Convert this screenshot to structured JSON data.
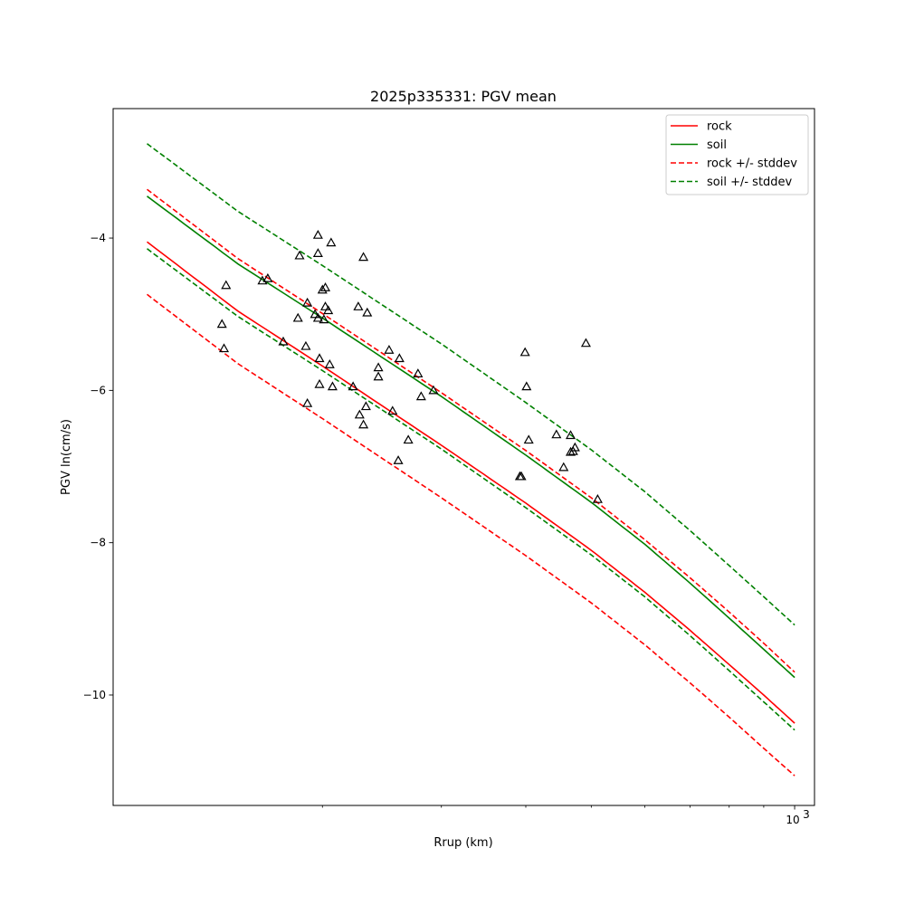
{
  "chart_data": {
    "type": "line",
    "title": "2025p335331: PGV mean",
    "xlabel": "Rrup (km)",
    "ylabel": "PGV ln(cm/s)",
    "xscale": "log",
    "xlim": [
      98,
      1070
    ],
    "ylim": [
      -11.45,
      -2.3
    ],
    "x_ticks": [
      {
        "value": 1000,
        "label": "10",
        "exponent": "3"
      }
    ],
    "x_minor_ticks": [
      200,
      300,
      400,
      500,
      600,
      700,
      800,
      900
    ],
    "y_ticks": [
      {
        "value": -4,
        "label": "−4"
      },
      {
        "value": -6,
        "label": "−6"
      },
      {
        "value": -8,
        "label": "−8"
      },
      {
        "value": -10,
        "label": "−10"
      }
    ],
    "grid": false,
    "legend_position": "top-right",
    "series": [
      {
        "name": "rock",
        "color": "#ff0000",
        "style": "solid",
        "x": [
          110,
          150,
          200,
          300,
          400,
          500,
          600,
          700,
          800,
          900,
          1000
        ],
        "y": [
          -4.05,
          -4.96,
          -5.68,
          -6.72,
          -7.48,
          -8.1,
          -8.65,
          -9.15,
          -9.6,
          -10.0,
          -10.37
        ]
      },
      {
        "name": "soil",
        "color": "#008000",
        "style": "solid",
        "x": [
          110,
          150,
          200,
          300,
          400,
          500,
          600,
          700,
          800,
          900,
          1000
        ],
        "y": [
          -3.45,
          -4.34,
          -5.05,
          -6.08,
          -6.85,
          -7.47,
          -8.02,
          -8.53,
          -8.99,
          -9.4,
          -9.77
        ]
      },
      {
        "name": "rock +/- stddev",
        "color": "#ff0000",
        "style": "dashed",
        "x": [
          110,
          150,
          200,
          300,
          400,
          500,
          600,
          700,
          800,
          900,
          1000
        ],
        "y": [
          -3.36,
          -4.27,
          -4.99,
          -6.03,
          -6.79,
          -7.41,
          -7.96,
          -8.46,
          -8.91,
          -9.32,
          -9.7
        ]
      },
      {
        "name": "",
        "color": "#ff0000",
        "style": "dashed",
        "x": [
          110,
          150,
          200,
          300,
          400,
          500,
          600,
          700,
          800,
          900,
          1000
        ],
        "y": [
          -4.74,
          -5.65,
          -6.37,
          -7.41,
          -8.17,
          -8.79,
          -9.34,
          -9.84,
          -10.29,
          -10.7,
          -11.06
        ]
      },
      {
        "name": "soil +/- stddev",
        "color": "#008000",
        "style": "dashed",
        "x": [
          110,
          150,
          200,
          300,
          400,
          500,
          600,
          700,
          800,
          900,
          1000
        ],
        "y": [
          -2.76,
          -3.65,
          -4.36,
          -5.39,
          -6.16,
          -6.78,
          -7.33,
          -7.84,
          -8.3,
          -8.71,
          -9.08
        ]
      },
      {
        "name": "",
        "color": "#008000",
        "style": "dashed",
        "x": [
          110,
          150,
          200,
          300,
          400,
          500,
          600,
          700,
          800,
          900,
          1000
        ],
        "y": [
          -4.14,
          -5.03,
          -5.74,
          -6.77,
          -7.54,
          -8.16,
          -8.71,
          -9.22,
          -9.68,
          -10.09,
          -10.46
        ]
      }
    ],
    "observations": {
      "marker": "triangle",
      "points": [
        [
          144,
          -4.62
        ],
        [
          163,
          -4.56
        ],
        [
          166,
          -4.53
        ],
        [
          142,
          -5.13
        ],
        [
          143,
          -5.45
        ],
        [
          185,
          -4.23
        ],
        [
          197,
          -3.96
        ],
        [
          197,
          -4.2
        ],
        [
          206,
          -4.06
        ],
        [
          230,
          -4.25
        ],
        [
          190,
          -4.85
        ],
        [
          184,
          -5.05
        ],
        [
          195,
          -5.0
        ],
        [
          197,
          -5.05
        ],
        [
          200,
          -4.68
        ],
        [
          202,
          -4.65
        ],
        [
          202,
          -4.9
        ],
        [
          204,
          -4.95
        ],
        [
          201,
          -5.07
        ],
        [
          226,
          -4.9
        ],
        [
          233,
          -4.98
        ],
        [
          175,
          -5.36
        ],
        [
          189,
          -5.42
        ],
        [
          198,
          -5.58
        ],
        [
          205,
          -5.66
        ],
        [
          251,
          -5.47
        ],
        [
          260,
          -5.58
        ],
        [
          242,
          -5.7
        ],
        [
          242,
          -5.82
        ],
        [
          277,
          -5.78
        ],
        [
          190,
          -6.17
        ],
        [
          198,
          -5.92
        ],
        [
          207,
          -5.95
        ],
        [
          222,
          -5.95
        ],
        [
          232,
          -6.21
        ],
        [
          227,
          -6.32
        ],
        [
          230,
          -6.45
        ],
        [
          254,
          -6.27
        ],
        [
          280,
          -6.08
        ],
        [
          292,
          -6.0
        ],
        [
          268,
          -6.65
        ],
        [
          259,
          -6.92
        ],
        [
          399,
          -5.5
        ],
        [
          401,
          -5.95
        ],
        [
          404,
          -6.65
        ],
        [
          444,
          -6.58
        ],
        [
          491,
          -5.38
        ],
        [
          466,
          -6.59
        ],
        [
          473,
          -6.75
        ],
        [
          466,
          -6.81
        ],
        [
          470,
          -6.8
        ],
        [
          455,
          -7.01
        ],
        [
          392,
          -7.13
        ],
        [
          394,
          -7.13
        ],
        [
          511,
          -7.43
        ]
      ]
    }
  }
}
